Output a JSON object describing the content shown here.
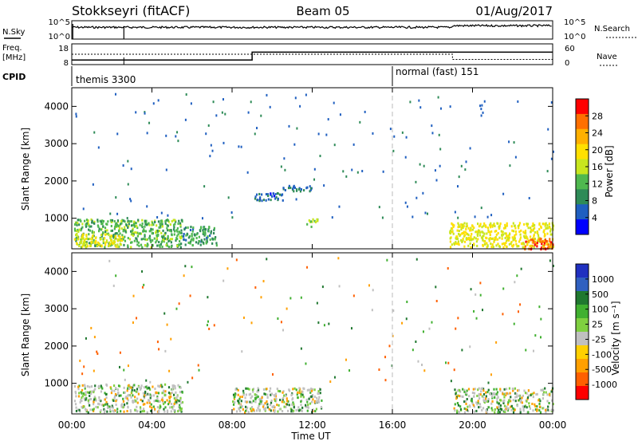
{
  "header": {
    "station": "Stokkseyri (fitACF)",
    "beam": "Beam 05",
    "date": "01/Aug/2017"
  },
  "panels": {
    "nsky": {
      "left_label": "N.Sky",
      "left_top_tick": "10^5",
      "left_bottom_tick": "10^0",
      "right_top_tick": "10^5",
      "right_bottom_tick": "10^0",
      "right_label": "N.Search"
    },
    "freq": {
      "left_label_line1": "Freq.",
      "left_label_line2": "[MHz]",
      "left_top_tick": "18",
      "left_bottom_tick": "8",
      "right_top_tick": "60",
      "right_bottom_tick": "0",
      "right_label": "Nave"
    },
    "cpid": {
      "label": "CPID",
      "program_1": "themis 3300",
      "program_2": "normal (fast) 151"
    },
    "power": {
      "ylabel": "Slant Range [km]",
      "colorbar_label": "Power [dB]",
      "colorbar_ticks": [
        "28",
        "24",
        "20",
        "16",
        "12",
        "8",
        "4"
      ],
      "colorbar_colors": [
        "#ff0000",
        "#ff6f00",
        "#ffb000",
        "#ffe000",
        "#c8e61e",
        "#4fb84f",
        "#2e8b57",
        "#1f5fc0",
        "#0000ff"
      ]
    },
    "velocity": {
      "ylabel": "Slant Range [km]",
      "colorbar_label": "Velocity [m s⁻¹]",
      "colorbar_ticks": [
        "1000",
        "500",
        "100",
        "25",
        "-25",
        "-100",
        "-500",
        "-1000"
      ],
      "colorbar_colors": [
        "#2030c0",
        "#3060c0",
        "#207830",
        "#40b030",
        "#7fd040",
        "#c0c0c0",
        "#ffd000",
        "#ffa000",
        "#ff6000",
        "#ff0000"
      ]
    }
  },
  "xaxis": {
    "label": "Time UT",
    "ticks": [
      "00:00",
      "04:00",
      "08:00",
      "12:00",
      "16:00",
      "20:00",
      "00:00"
    ]
  },
  "chart_data": {
    "type": "heatmap",
    "title": "Stokkseyri (fitACF) Beam 05 01/Aug/2017",
    "xlabel": "Time UT",
    "ylabel": "Slant Range [km]",
    "x_range_hours": [
      0,
      24
    ],
    "y_range_km": [
      180,
      4500
    ],
    "y_ticks": [
      1000,
      2000,
      3000,
      4000
    ],
    "program_switch_hour": 16,
    "frequency_step_hours": [
      [
        0,
        9,
        10.2
      ],
      [
        9,
        24,
        14.0
      ]
    ],
    "nave_step_hours": [
      [
        0,
        19,
        30
      ],
      [
        19,
        24,
        15
      ]
    ],
    "power_regions": [
      {
        "t0": 0.1,
        "t1": 5.5,
        "r0": 250,
        "r1": 1000,
        "level": 12
      },
      {
        "t0": 0.1,
        "t1": 2.5,
        "r0": 250,
        "r1": 600,
        "level": 18
      },
      {
        "t0": 5.5,
        "t1": 7.2,
        "r0": 300,
        "r1": 800,
        "level": 9
      },
      {
        "t0": 9.0,
        "t1": 10.5,
        "r0": 1500,
        "r1": 1700,
        "level": 5
      },
      {
        "t0": 10.5,
        "t1": 12.0,
        "r0": 1750,
        "r1": 1900,
        "level": 6
      },
      {
        "t0": 11.7,
        "t1": 12.3,
        "r0": 800,
        "r1": 1000,
        "level": 14
      },
      {
        "t0": 18.8,
        "t1": 24,
        "r0": 250,
        "r1": 900,
        "level": 18
      },
      {
        "t0": 22.5,
        "t1": 24,
        "r0": 200,
        "r1": 500,
        "level": 28
      }
    ],
    "velocity_regions": [
      {
        "t0": 0.1,
        "t1": 5.5,
        "r0": 250,
        "r1": 1000,
        "category": "±25 / 25–100"
      },
      {
        "t0": 8.0,
        "t1": 12.5,
        "r0": 250,
        "r1": 900,
        "category": "±25"
      },
      {
        "t0": 19.0,
        "t1": 24,
        "r0": 250,
        "r1": 900,
        "category": "±25"
      }
    ]
  }
}
